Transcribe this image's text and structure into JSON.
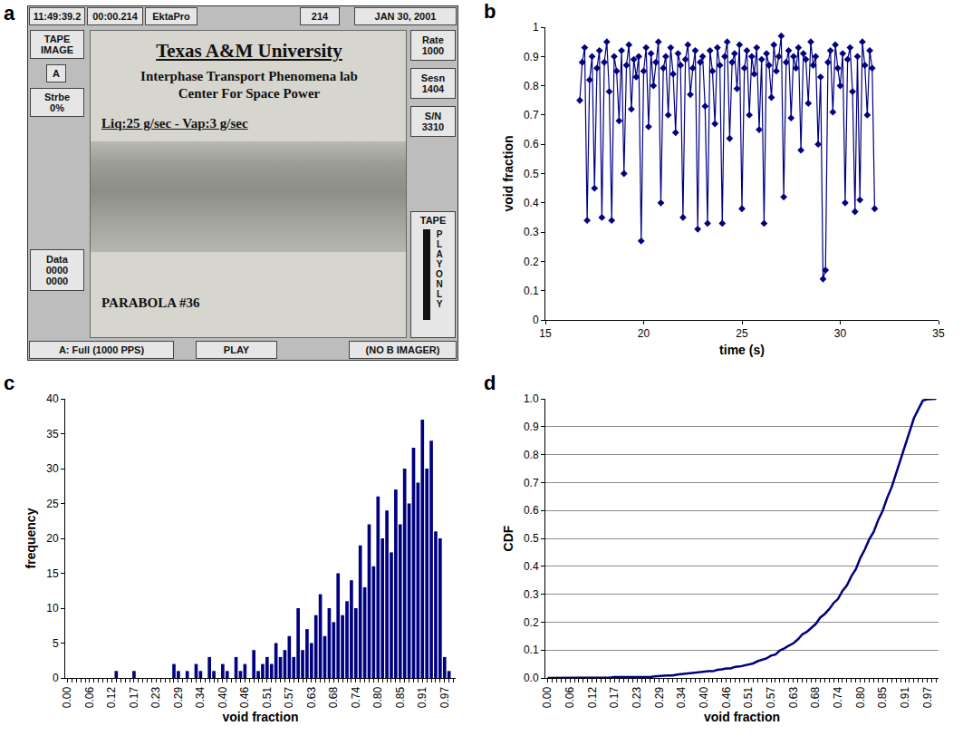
{
  "panel_a": {
    "panel_label": "a",
    "top_bar": [
      "11:49:39.2",
      "00:00.214",
      "EktaPro",
      "214",
      "JAN 30, 2001"
    ],
    "left_boxes": [
      [
        "TAPE",
        "IMAGE"
      ],
      [
        "A"
      ],
      [
        "Strbe",
        "0%"
      ],
      [
        "Data",
        "0000",
        "0000"
      ]
    ],
    "right_boxes": [
      [
        "Rate",
        "1000"
      ],
      [
        "Sesn",
        "1404"
      ],
      [
        "S/N",
        "3310"
      ]
    ],
    "tape_meter": {
      "label": "TAPE",
      "text": "PLAY ONLY"
    },
    "screen": {
      "title": "Texas A&M University",
      "lines": [
        "Interphase Transport Phenomena lab",
        "Center For Space Power"
      ],
      "flow": "Liq:25 g/sec - Vap:3 g/sec",
      "caption": "PARABOLA #36"
    },
    "bottom_bar": [
      "A: Full (1000 PPS)",
      "PLAY",
      "(NO B IMAGER)"
    ]
  },
  "chart_data": [
    {
      "panel_label": "b",
      "type": "line",
      "marker": "diamond",
      "color": "#000080",
      "grid": false,
      "x_label": "time (s)",
      "y_label": "void fraction",
      "xlim": [
        15,
        35
      ],
      "xticks": [
        15,
        20,
        25,
        30,
        35
      ],
      "ylim": [
        0,
        1
      ],
      "yticks": [
        0,
        0.1,
        0.2,
        0.3,
        0.4,
        0.5,
        0.6,
        0.7,
        0.8,
        0.9,
        1
      ],
      "x": [
        16.75,
        16.875,
        17,
        17.125,
        17.25,
        17.375,
        17.5,
        17.625,
        17.75,
        17.875,
        18,
        18.125,
        18.25,
        18.375,
        18.5,
        18.625,
        18.75,
        18.875,
        19,
        19.125,
        19.25,
        19.375,
        19.5,
        19.625,
        19.75,
        19.875,
        20,
        20.125,
        20.25,
        20.375,
        20.5,
        20.625,
        20.75,
        20.875,
        21,
        21.125,
        21.25,
        21.375,
        21.5,
        21.625,
        21.75,
        21.875,
        22,
        22.125,
        22.25,
        22.375,
        22.5,
        22.625,
        22.75,
        22.875,
        23,
        23.125,
        23.25,
        23.375,
        23.5,
        23.625,
        23.75,
        23.875,
        24,
        24.125,
        24.25,
        24.375,
        24.5,
        24.625,
        24.75,
        24.875,
        25,
        25.125,
        25.25,
        25.375,
        25.5,
        25.625,
        25.75,
        25.875,
        26,
        26.125,
        26.25,
        26.375,
        26.5,
        26.625,
        26.75,
        26.875,
        27,
        27.125,
        27.25,
        27.375,
        27.5,
        27.625,
        27.75,
        27.875,
        28,
        28.125,
        28.25,
        28.375,
        28.5,
        28.625,
        28.75,
        28.875,
        29,
        29.125,
        29.25,
        29.375,
        29.5,
        29.625,
        29.75,
        29.875,
        30,
        30.125,
        30.25,
        30.375,
        30.5,
        30.625,
        30.75,
        30.875,
        31,
        31.125,
        31.25,
        31.375,
        31.5,
        31.625,
        31.75
      ],
      "values": [
        0.75,
        0.88,
        0.93,
        0.34,
        0.82,
        0.9,
        0.45,
        0.86,
        0.92,
        0.35,
        0.88,
        0.95,
        0.78,
        0.34,
        0.9,
        0.85,
        0.68,
        0.92,
        0.5,
        0.87,
        0.94,
        0.72,
        0.89,
        0.83,
        0.9,
        0.27,
        0.85,
        0.93,
        0.66,
        0.91,
        0.8,
        0.88,
        0.95,
        0.4,
        0.86,
        0.9,
        0.7,
        0.93,
        0.84,
        0.64,
        0.91,
        0.87,
        0.35,
        0.89,
        0.94,
        0.77,
        0.86,
        0.92,
        0.31,
        0.88,
        0.9,
        0.73,
        0.33,
        0.92,
        0.85,
        0.67,
        0.93,
        0.87,
        0.33,
        0.9,
        0.95,
        0.62,
        0.88,
        0.91,
        0.79,
        0.94,
        0.38,
        0.86,
        0.92,
        0.7,
        0.9,
        0.84,
        0.93,
        0.65,
        0.89,
        0.33,
        0.91,
        0.87,
        0.76,
        0.94,
        0.85,
        0.9,
        0.97,
        0.42,
        0.88,
        0.92,
        0.69,
        0.9,
        0.86,
        0.93,
        0.58,
        0.91,
        0.89,
        0.74,
        0.95,
        0.87,
        0.9,
        0.6,
        0.83,
        0.14,
        0.17,
        0.88,
        0.92,
        0.71,
        0.94,
        0.86,
        0.8,
        0.91,
        0.4,
        0.89,
        0.93,
        0.78,
        0.37,
        0.9,
        0.41,
        0.95,
        0.87,
        0.7,
        0.92,
        0.86,
        0.38
      ]
    },
    {
      "panel_label": "c",
      "type": "bar",
      "color": "#000080",
      "grid": false,
      "x_label": "void fraction",
      "y_label": "frequency",
      "ylim": [
        0,
        40
      ],
      "yticks": [
        0,
        5,
        10,
        15,
        20,
        25,
        30,
        35,
        40
      ],
      "categories": [
        "0.00",
        null,
        null,
        null,
        null,
        "0.06",
        null,
        null,
        null,
        null,
        "0.12",
        null,
        null,
        null,
        null,
        "0.17",
        null,
        null,
        null,
        null,
        "0.23",
        null,
        null,
        null,
        null,
        "0.29",
        null,
        null,
        null,
        null,
        "0.34",
        null,
        null,
        null,
        null,
        "0.40",
        null,
        null,
        null,
        null,
        "0.46",
        null,
        null,
        null,
        null,
        "0.51",
        null,
        null,
        null,
        null,
        "0.57",
        null,
        null,
        null,
        null,
        "0.63",
        null,
        null,
        null,
        null,
        "0.68",
        null,
        null,
        null,
        null,
        "0.74",
        null,
        null,
        null,
        null,
        "0.80",
        null,
        null,
        null,
        null,
        "0.85",
        null,
        null,
        null,
        null,
        "0.91",
        null,
        null,
        null,
        null,
        "0.97",
        null,
        null
      ],
      "values": [
        0,
        0,
        0,
        0,
        0,
        0,
        0,
        0,
        0,
        0,
        0,
        1,
        0,
        0,
        0,
        1,
        0,
        0,
        0,
        0,
        0,
        0,
        0,
        0,
        2,
        1,
        0,
        1,
        0,
        2,
        1,
        0,
        3,
        1,
        0,
        2,
        1,
        0,
        3,
        1,
        2,
        0,
        4,
        1,
        2,
        3,
        2,
        5,
        3,
        4,
        6,
        3,
        10,
        4,
        7,
        5,
        9,
        12,
        6,
        10,
        8,
        15,
        9,
        11,
        14,
        10,
        19,
        13,
        22,
        16,
        26,
        20,
        24,
        18,
        27,
        22,
        30,
        25,
        33,
        28,
        37,
        30,
        34,
        21,
        20,
        3,
        1,
        0
      ]
    },
    {
      "panel_label": "d",
      "type": "line",
      "color": "#000080",
      "grid": true,
      "x_label": "void fraction",
      "y_label": "CDF",
      "ylim": [
        0,
        1
      ],
      "yticks": [
        {
          "value": 0,
          "label": "0.0"
        },
        0.1,
        0.2,
        0.3,
        0.4,
        0.5,
        0.6,
        0.7,
        0.8,
        0.9,
        {
          "value": 1,
          "label": "1.0"
        }
      ],
      "categories": [
        "0.00",
        null,
        null,
        null,
        null,
        "0.06",
        null,
        null,
        null,
        null,
        "0.12",
        null,
        null,
        null,
        null,
        "0.17",
        null,
        null,
        null,
        null,
        "0.23",
        null,
        null,
        null,
        null,
        "0.29",
        null,
        null,
        null,
        null,
        "0.34",
        null,
        null,
        null,
        null,
        "0.40",
        null,
        null,
        null,
        null,
        "0.46",
        null,
        null,
        null,
        null,
        "0.51",
        null,
        null,
        null,
        null,
        "0.57",
        null,
        null,
        null,
        null,
        "0.63",
        null,
        null,
        null,
        null,
        "0.68",
        null,
        null,
        null,
        null,
        "0.74",
        null,
        null,
        null,
        null,
        "0.80",
        null,
        null,
        null,
        null,
        "0.85",
        null,
        null,
        null,
        null,
        "0.91",
        null,
        null,
        null,
        null,
        "0.97",
        null,
        null
      ],
      "values": [
        0,
        0,
        0,
        0,
        0,
        0,
        0,
        0,
        0,
        0,
        0,
        0.002,
        0.002,
        0.002,
        0.002,
        0.003,
        0.003,
        0.003,
        0.003,
        0.003,
        0.003,
        0.003,
        0.003,
        0.003,
        0.006,
        0.008,
        0.008,
        0.009,
        0.009,
        0.012,
        0.014,
        0.014,
        0.018,
        0.02,
        0.02,
        0.023,
        0.024,
        0.024,
        0.029,
        0.031,
        0.034,
        0.034,
        0.04,
        0.041,
        0.044,
        0.049,
        0.052,
        0.06,
        0.064,
        0.07,
        0.08,
        0.084,
        0.099,
        0.106,
        0.116,
        0.124,
        0.138,
        0.156,
        0.165,
        0.18,
        0.193,
        0.216,
        0.229,
        0.246,
        0.268,
        0.283,
        0.312,
        0.332,
        0.365,
        0.39,
        0.43,
        0.46,
        0.497,
        0.524,
        0.566,
        0.599,
        0.645,
        0.683,
        0.734,
        0.777,
        0.833,
        0.879,
        0.931,
        0.963,
        0.994,
        0.998,
        1,
        1
      ]
    }
  ]
}
